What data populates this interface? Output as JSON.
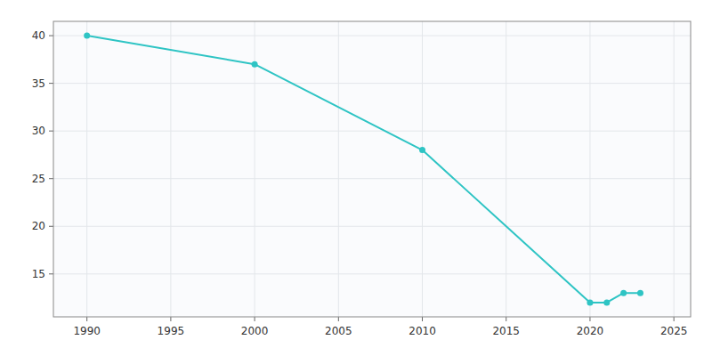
{
  "chart_data": {
    "type": "line",
    "x": [
      1990,
      2000,
      2010,
      2020,
      2021,
      2022,
      2023
    ],
    "values": [
      40,
      37,
      28,
      12,
      12,
      13,
      13
    ],
    "color": "#2EC4C4",
    "marker": "circle",
    "xlim": [
      1988,
      2026
    ],
    "ylim": [
      10.5,
      41.5
    ],
    "xticks": [
      1990,
      1995,
      2000,
      2005,
      2010,
      2015,
      2020,
      2025
    ],
    "yticks": [
      15,
      20,
      25,
      30,
      35,
      40
    ],
    "grid": true
  }
}
